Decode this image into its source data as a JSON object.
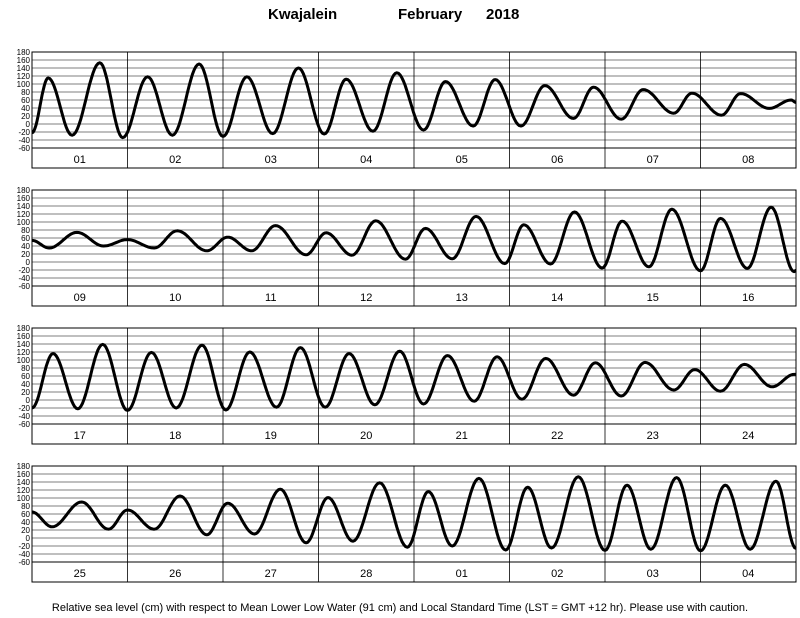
{
  "title": {
    "station": "Kwajalein",
    "month": "February",
    "year": "2018"
  },
  "footer": "Relative sea level (cm) with respect to Mean Lower Low Water (91 cm) and Local Standard Time (LST = GMT +12 hr). Please use with caution.",
  "chart_data": [
    {
      "type": "line",
      "x_unit": "day",
      "ylabel": "",
      "ylim": [
        -60,
        180
      ],
      "yticks": [
        180,
        160,
        140,
        120,
        100,
        80,
        60,
        40,
        20,
        0,
        -20,
        -40,
        -60
      ],
      "grid": true,
      "categories": [
        "01",
        "02",
        "03",
        "04",
        "05",
        "06",
        "07",
        "08"
      ],
      "series": [
        {
          "extrema": [
            [
              0.0,
              -22
            ],
            [
              0.17,
              115
            ],
            [
              0.42,
              -28
            ],
            [
              0.71,
              153
            ],
            [
              0.95,
              -34
            ],
            [
              1.21,
              118
            ],
            [
              1.47,
              -28
            ],
            [
              1.75,
              150
            ],
            [
              2.0,
              -31
            ],
            [
              2.25,
              118
            ],
            [
              2.52,
              -24
            ],
            [
              2.79,
              140
            ],
            [
              3.06,
              -25
            ],
            [
              3.29,
              112
            ],
            [
              3.57,
              -18
            ],
            [
              3.82,
              128
            ],
            [
              4.1,
              -15
            ],
            [
              4.33,
              106
            ],
            [
              4.62,
              -5
            ],
            [
              4.85,
              111
            ],
            [
              5.12,
              -5
            ],
            [
              5.37,
              96
            ],
            [
              5.67,
              14
            ],
            [
              5.88,
              92
            ],
            [
              6.17,
              12
            ],
            [
              6.4,
              86
            ],
            [
              6.72,
              27
            ],
            [
              6.91,
              77
            ],
            [
              7.22,
              22
            ],
            [
              7.42,
              76
            ],
            [
              7.72,
              39
            ],
            [
              7.95,
              60
            ],
            [
              8.0,
              54
            ]
          ]
        }
      ]
    },
    {
      "type": "line",
      "x_unit": "day",
      "ylabel": "",
      "ylim": [
        -60,
        180
      ],
      "yticks": [
        180,
        160,
        140,
        120,
        100,
        80,
        60,
        40,
        20,
        0,
        -20,
        -40,
        -60
      ],
      "grid": true,
      "categories": [
        "09",
        "10",
        "11",
        "12",
        "13",
        "14",
        "15",
        "16"
      ],
      "series": [
        {
          "extrema": [
            [
              0.0,
              54
            ],
            [
              0.18,
              35
            ],
            [
              0.47,
              74
            ],
            [
              0.75,
              40
            ],
            [
              1.0,
              56
            ],
            [
              1.28,
              35
            ],
            [
              1.52,
              78
            ],
            [
              1.83,
              28
            ],
            [
              2.05,
              62
            ],
            [
              2.3,
              28
            ],
            [
              2.55,
              91
            ],
            [
              2.87,
              18
            ],
            [
              3.08,
              73
            ],
            [
              3.35,
              17
            ],
            [
              3.6,
              103
            ],
            [
              3.91,
              7
            ],
            [
              4.12,
              84
            ],
            [
              4.4,
              8
            ],
            [
              4.65,
              114
            ],
            [
              4.95,
              -4
            ],
            [
              5.15,
              93
            ],
            [
              5.43,
              -5
            ],
            [
              5.68,
              125
            ],
            [
              5.97,
              -15
            ],
            [
              6.18,
              102
            ],
            [
              6.46,
              -12
            ],
            [
              6.7,
              132
            ],
            [
              7.0,
              -22
            ],
            [
              7.21,
              109
            ],
            [
              7.49,
              -16
            ],
            [
              7.74,
              137
            ],
            [
              7.98,
              -24
            ],
            [
              8.0,
              -21
            ]
          ]
        }
      ]
    },
    {
      "type": "line",
      "x_unit": "day",
      "ylabel": "",
      "ylim": [
        -60,
        180
      ],
      "yticks": [
        180,
        160,
        140,
        120,
        100,
        80,
        60,
        40,
        20,
        0,
        -20,
        -40,
        -60
      ],
      "grid": true,
      "categories": [
        "17",
        "18",
        "19",
        "20",
        "21",
        "22",
        "23",
        "24"
      ],
      "series": [
        {
          "extrema": [
            [
              0.0,
              -20
            ],
            [
              0.22,
              116
            ],
            [
              0.48,
              -22
            ],
            [
              0.74,
              139
            ],
            [
              1.0,
              -26
            ],
            [
              1.25,
              119
            ],
            [
              1.51,
              -20
            ],
            [
              1.78,
              137
            ],
            [
              2.03,
              -25
            ],
            [
              2.28,
              120
            ],
            [
              2.56,
              -18
            ],
            [
              2.81,
              131
            ],
            [
              3.07,
              -18
            ],
            [
              3.32,
              116
            ],
            [
              3.59,
              -12
            ],
            [
              3.85,
              122
            ],
            [
              4.1,
              -10
            ],
            [
              4.35,
              111
            ],
            [
              4.63,
              -3
            ],
            [
              4.87,
              108
            ],
            [
              5.13,
              2
            ],
            [
              5.38,
              104
            ],
            [
              5.67,
              12
            ],
            [
              5.9,
              93
            ],
            [
              6.17,
              10
            ],
            [
              6.42,
              94
            ],
            [
              6.72,
              25
            ],
            [
              6.94,
              76
            ],
            [
              7.21,
              22
            ],
            [
              7.46,
              89
            ],
            [
              7.75,
              33
            ],
            [
              7.98,
              64
            ],
            [
              8.0,
              64
            ]
          ]
        }
      ]
    },
    {
      "type": "line",
      "x_unit": "day",
      "ylabel": "",
      "ylim": [
        -60,
        180
      ],
      "yticks": [
        180,
        160,
        140,
        120,
        100,
        80,
        60,
        40,
        20,
        0,
        -20,
        -40,
        -60
      ],
      "grid": true,
      "categories": [
        "25",
        "26",
        "27",
        "28",
        "01",
        "02",
        "03",
        "04"
      ],
      "series": [
        {
          "extrema": [
            [
              0.0,
              65
            ],
            [
              0.21,
              28
            ],
            [
              0.52,
              90
            ],
            [
              0.8,
              22
            ],
            [
              1.0,
              70
            ],
            [
              1.28,
              22
            ],
            [
              1.55,
              105
            ],
            [
              1.83,
              8
            ],
            [
              2.05,
              87
            ],
            [
              2.33,
              10
            ],
            [
              2.6,
              122
            ],
            [
              2.87,
              -12
            ],
            [
              3.1,
              101
            ],
            [
              3.36,
              -8
            ],
            [
              3.64,
              138
            ],
            [
              3.93,
              -23
            ],
            [
              4.15,
              116
            ],
            [
              4.4,
              -20
            ],
            [
              4.68,
              149
            ],
            [
              4.96,
              -30
            ],
            [
              5.19,
              127
            ],
            [
              5.44,
              -25
            ],
            [
              5.72,
              153
            ],
            [
              6.0,
              -31
            ],
            [
              6.23,
              132
            ],
            [
              6.48,
              -28
            ],
            [
              6.75,
              151
            ],
            [
              7.0,
              -32
            ],
            [
              7.26,
              132
            ],
            [
              7.52,
              -28
            ],
            [
              7.79,
              142
            ],
            [
              8.0,
              -26
            ]
          ]
        }
      ]
    }
  ]
}
